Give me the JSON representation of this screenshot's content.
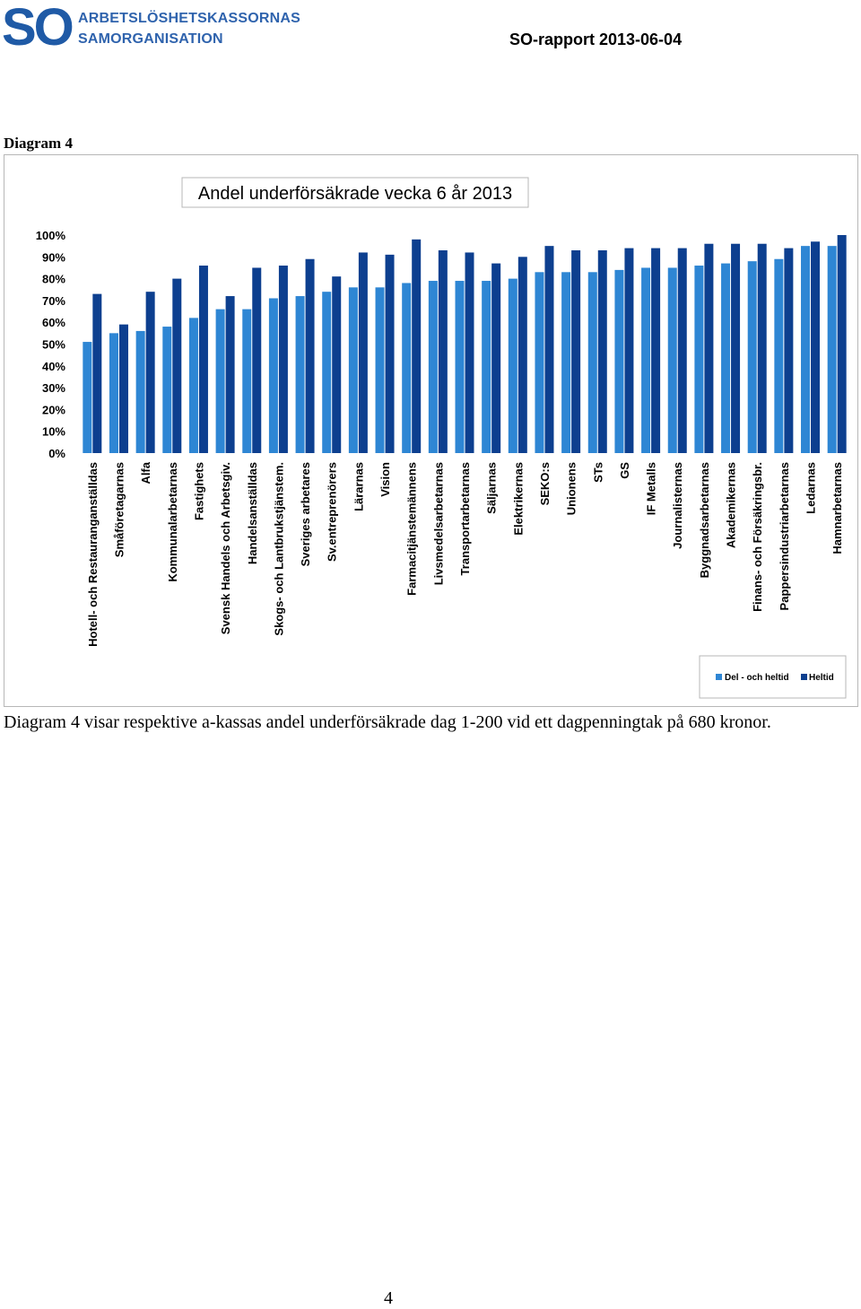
{
  "header": {
    "logo_text": "SO",
    "logo_line1": "ARBETSLÖSHETSKASSORNAS",
    "logo_line2": "SAMORGANISATION",
    "report_id": "SO-rapport 2013-06-04"
  },
  "diagram_heading": "Diagram 4",
  "caption": "Diagram 4 visar respektive a-kassas andel underförsäkrade dag 1-200 vid ett dagpenningtak på 680 kronor.",
  "page_number": "4",
  "colors": {
    "series_part_time": "#2e86d4",
    "series_full_time": "#0d3f8f",
    "frame": "#b7b7b7"
  },
  "chart_data": {
    "type": "bar",
    "title": "Andel underförsäkrade vecka 6 år 2013",
    "ylim": [
      0,
      100
    ],
    "ytick_labels": [
      "100%",
      "90%",
      "80%",
      "70%",
      "60%",
      "50%",
      "40%",
      "30%",
      "20%",
      "10%",
      "0%"
    ],
    "grid": false,
    "legend_position": "bottom-right",
    "categories": [
      "Hotell- och Restauranganställdas",
      "Småföretagarnas",
      "Alfa",
      "Kommunalarbetarnas",
      "Fastighets",
      "Svensk Handels och Arbetsgiv.",
      "Handelsanställdas",
      "Skogs- och Lantbrukstjänstem.",
      "Sveriges arbetares",
      "Sv.entreprenörers",
      "Lärarnas",
      "Vision",
      "Farmacitjänstemännens",
      "Livsmedelsarbetarnas",
      "Transportarbetarnas",
      "Säljarnas",
      "Elektrikernas",
      "SEKO:s",
      "Unionens",
      "STs",
      "GS",
      "IF Metalls",
      "Journalisternas",
      "Byggnadsarbetarnas",
      "Akademikernas",
      "Finans- och Försäkringsbr.",
      "Pappersindustriarbetarnas",
      "Ledarnas",
      "Hamnarbetarnas"
    ],
    "series": [
      {
        "name": "Del - och heltid",
        "values": [
          51,
          55,
          56,
          58,
          62,
          66,
          66,
          71,
          72,
          74,
          76,
          76,
          78,
          79,
          79,
          79,
          80,
          83,
          83,
          83,
          84,
          85,
          85,
          86,
          87,
          88,
          89,
          95,
          95
        ]
      },
      {
        "name": "Heltid",
        "values": [
          73,
          59,
          74,
          80,
          86,
          72,
          85,
          86,
          89,
          81,
          92,
          91,
          98,
          93,
          92,
          87,
          90,
          95,
          93,
          93,
          94,
          94,
          94,
          96,
          96,
          96,
          94,
          97,
          100
        ]
      }
    ]
  }
}
